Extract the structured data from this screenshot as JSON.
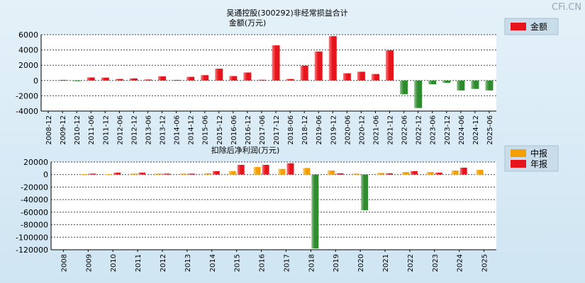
{
  "watermark": "CFi.CN",
  "chart_data": [
    {
      "type": "bar",
      "title": "吴通控股(300292)非经常损益合计",
      "subtitle": "金额(万元)",
      "ylim": [
        -4000,
        6000
      ],
      "yticks": [
        6000,
        4000,
        2000,
        0,
        -2000,
        -4000
      ],
      "grid": true,
      "legend_position": "top-right",
      "categories": [
        "2008-12",
        "2009-12",
        "2010-12",
        "2011-06",
        "2011-12",
        "2012-06",
        "2012-12",
        "2013-06",
        "2013-12",
        "2014-06",
        "2014-12",
        "2015-06",
        "2015-12",
        "2016-06",
        "2016-12",
        "2017-06",
        "2017-12",
        "2018-06",
        "2018-12",
        "2019-06",
        "2019-12",
        "2020-06",
        "2020-12",
        "2021-06",
        "2021-12",
        "2022-06",
        "2022-12",
        "2023-06",
        "2023-12",
        "2024-06",
        "2024-12",
        "2025-06"
      ],
      "series": [
        {
          "name": "金额",
          "color": "#e8141c",
          "negative_color": "#2e8b2e",
          "values": [
            0,
            80,
            -50,
            400,
            380,
            200,
            280,
            130,
            550,
            80,
            480,
            700,
            1550,
            580,
            1050,
            100,
            4600,
            200,
            1950,
            3800,
            5800,
            950,
            1150,
            850,
            3950,
            -1800,
            -3600,
            -500,
            -300,
            -1300,
            -1100,
            -1300
          ]
        }
      ]
    },
    {
      "type": "bar",
      "title": "扣除后净利润(万元)",
      "ylim": [
        -120000,
        20000
      ],
      "yticks": [
        20000,
        0,
        -20000,
        -40000,
        -60000,
        -80000,
        -100000,
        -120000
      ],
      "grid": true,
      "legend_position": "top-right",
      "categories": [
        "2008",
        "2009",
        "2010",
        "2011",
        "2012",
        "2013",
        "2014",
        "2015",
        "2016",
        "2017",
        "2018",
        "2019",
        "2020",
        "2021",
        "2022",
        "2023",
        "2024",
        "2025"
      ],
      "series": [
        {
          "name": "中报",
          "color": "#f5a000",
          "negative_color": "#2e8b2e",
          "values": [
            null,
            500,
            500,
            1500,
            1500,
            1500,
            2000,
            5500,
            12000,
            9000,
            10500,
            6500,
            1500,
            2500,
            4000,
            4000,
            6500,
            7500
          ]
        },
        {
          "name": "年报",
          "color": "#e8141c",
          "negative_color": "#2e8b2e",
          "values": [
            null,
            1500,
            3000,
            3000,
            1500,
            1500,
            5500,
            15500,
            15500,
            18000,
            -118000,
            2000,
            -57000,
            2000,
            5500,
            3000,
            11000,
            null
          ]
        }
      ]
    }
  ]
}
